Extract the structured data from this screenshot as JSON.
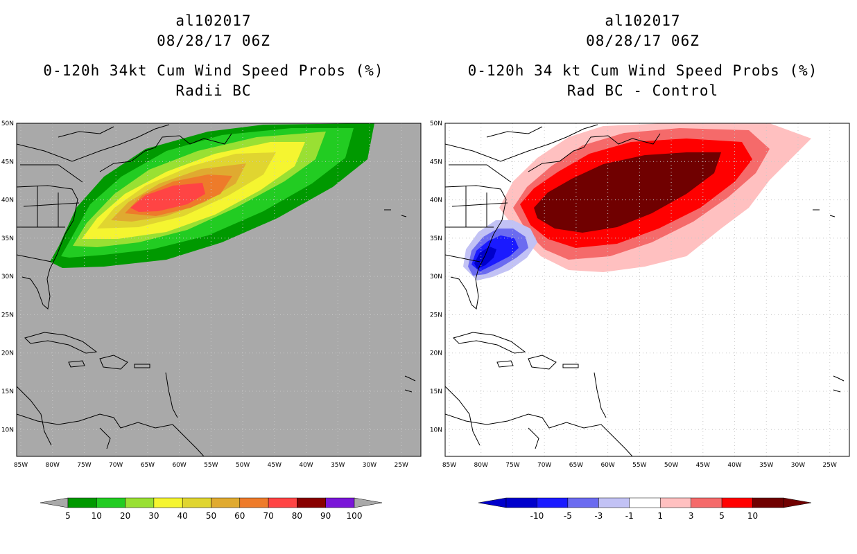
{
  "left": {
    "storm_id": "al102017",
    "datetime": "08/28/17 06Z",
    "title": "0-120h 34kt Cum Wind Speed Probs (%)",
    "subtitle": "Radii BC",
    "legend": {
      "labels": [
        "5",
        "10",
        "20",
        "30",
        "40",
        "50",
        "60",
        "70",
        "80",
        "90",
        "100"
      ],
      "colors": [
        "#009900",
        "#22cc22",
        "#99e033",
        "#f5f530",
        "#e0d530",
        "#e0aa30",
        "#ee7b2a",
        "#ff4444",
        "#880000",
        "#7a16d8"
      ]
    },
    "background_color": "#a9a9a9"
  },
  "right": {
    "storm_id": "al102017",
    "datetime": "08/28/17 06Z",
    "title": "0-120h 34 kt Cum Wind Speed Probs (%)",
    "subtitle": "Rad BC - Control",
    "legend": {
      "labels": [
        "-10",
        "-5",
        "-3",
        "-1",
        "1",
        "3",
        "5",
        "10"
      ],
      "colors": [
        "#0000cc",
        "#1a1aff",
        "#6b6bf0",
        "#c2c2f5",
        "#ffffff",
        "#ffc0c0",
        "#f56a6a",
        "#ff0000",
        "#700000"
      ]
    },
    "background_color": "#ffffff"
  },
  "axes": {
    "lat_labels": [
      "50N",
      "45N",
      "40N",
      "35N",
      "30N",
      "25N",
      "20N",
      "15N",
      "10N"
    ],
    "lon_labels": [
      "85W",
      "80W",
      "75W",
      "70W",
      "65W",
      "60W",
      "55W",
      "50W",
      "45W",
      "40W",
      "35W",
      "30W",
      "25W"
    ]
  }
}
